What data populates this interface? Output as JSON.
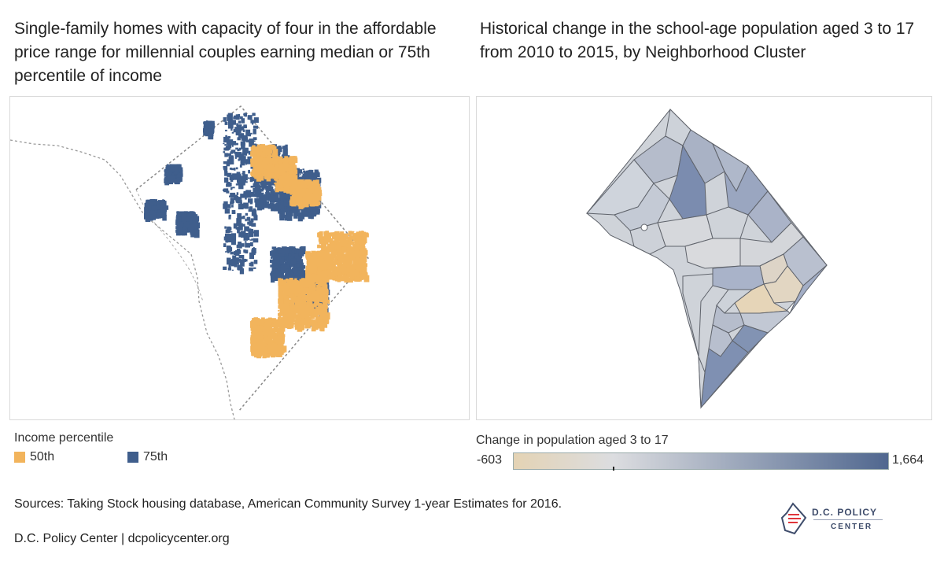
{
  "left_panel": {
    "title": "Single-family homes with capacity of four in the affordable price range for millennial couples earning median or 75th percentile of income"
  },
  "right_panel": {
    "title": "Historical change in the school-age population aged 3 to 17 from 2010 to 2015, by Neighborhood Cluster"
  },
  "income_legend": {
    "title": "Income percentile",
    "items": [
      {
        "label": "50th",
        "color": "#f2b45c"
      },
      {
        "label": "75th",
        "color": "#3f5e8c"
      }
    ]
  },
  "change_legend": {
    "title": "Change in population aged 3 to 17",
    "min_label": "-603",
    "max_label": "1,664",
    "min_value": -603,
    "max_value": 1664,
    "color_low": "#e4d3b4",
    "color_mid": "#dcdde0",
    "color_high": "#50678f"
  },
  "footer": {
    "sources": "Sources: Taking Stock housing database, American Community Survey 1-year Estimates for 2016.",
    "credit": "D.C. Policy Center | dcpolicycenter.org"
  },
  "logo": {
    "line1": "D.C. POLICY",
    "line2": "CENTER"
  }
}
